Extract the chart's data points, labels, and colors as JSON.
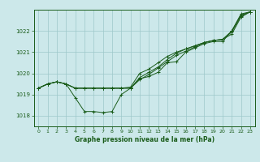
{
  "title": "Graphe pression niveau de la mer (hPa)",
  "bg_color": "#cce8ea",
  "grid_color": "#9ec8ca",
  "line_color": "#1a5c1a",
  "xlim": [
    -0.5,
    23.5
  ],
  "ylim": [
    1017.5,
    1023.0
  ],
  "yticks": [
    1018,
    1019,
    1020,
    1021,
    1022
  ],
  "xticks": [
    0,
    1,
    2,
    3,
    4,
    5,
    6,
    7,
    8,
    9,
    10,
    11,
    12,
    13,
    14,
    15,
    16,
    17,
    18,
    19,
    20,
    21,
    22,
    23
  ],
  "series": [
    [
      1019.3,
      1019.5,
      1019.6,
      1019.5,
      1018.85,
      1018.2,
      1018.2,
      1018.15,
      1018.2,
      1019.0,
      1019.3,
      1019.75,
      1019.85,
      1020.05,
      1020.5,
      1020.55,
      1021.0,
      1021.2,
      1021.4,
      1021.5,
      1021.5,
      1022.0,
      1022.8,
      1022.9
    ],
    [
      1019.3,
      1019.5,
      1019.6,
      1019.5,
      1019.3,
      1019.3,
      1019.3,
      1019.3,
      1019.3,
      1019.3,
      1019.35,
      1020.0,
      1020.2,
      1020.5,
      1020.8,
      1021.0,
      1021.15,
      1021.3,
      1021.45,
      1021.55,
      1021.6,
      1022.0,
      1022.75,
      1022.9
    ],
    [
      1019.3,
      1019.5,
      1019.6,
      1019.5,
      1019.3,
      1019.3,
      1019.3,
      1019.3,
      1019.3,
      1019.3,
      1019.3,
      1019.8,
      1020.05,
      1020.3,
      1020.65,
      1020.95,
      1021.15,
      1021.3,
      1021.45,
      1021.55,
      1021.6,
      1021.95,
      1022.7,
      1022.9
    ],
    [
      1019.3,
      1019.5,
      1019.6,
      1019.5,
      1019.3,
      1019.3,
      1019.3,
      1019.3,
      1019.3,
      1019.3,
      1019.3,
      1019.7,
      1019.95,
      1020.25,
      1020.55,
      1020.85,
      1021.05,
      1021.25,
      1021.45,
      1021.55,
      1021.6,
      1021.85,
      1022.65,
      1022.9
    ]
  ]
}
